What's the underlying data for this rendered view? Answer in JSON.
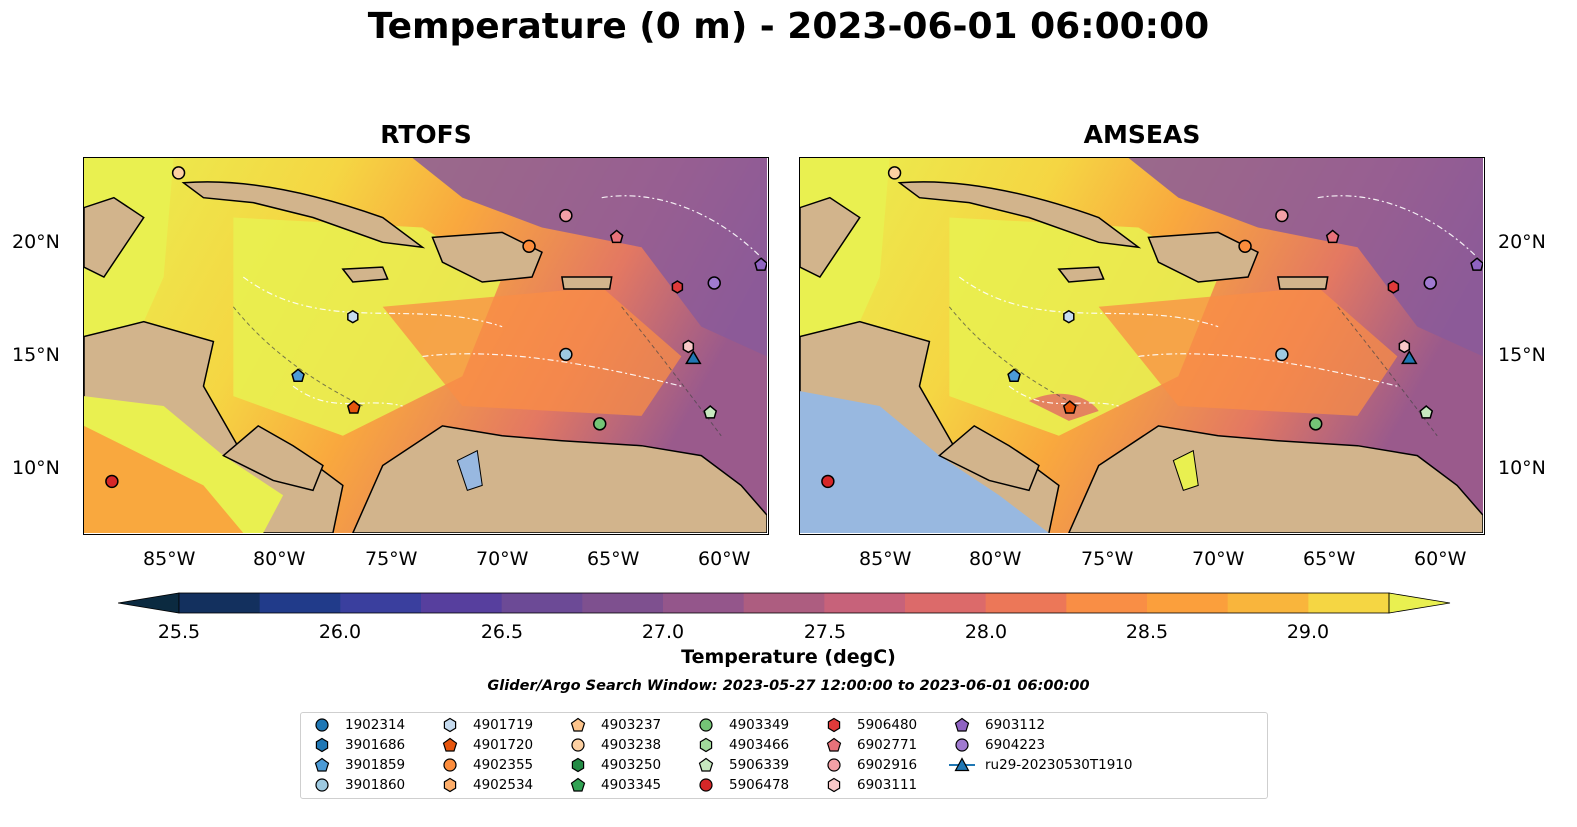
{
  "title": "Temperature (0 m) - 2023-06-01 06:00:00",
  "panels": [
    {
      "title": "RTOFS"
    },
    {
      "title": "AMSEAS"
    }
  ],
  "axes": {
    "x_ticks": [
      "85°W",
      "80°W",
      "75°W",
      "70°W",
      "65°W",
      "60°W"
    ],
    "y_ticks": [
      "20°N",
      "15°N",
      "10°N"
    ]
  },
  "colorbar": {
    "label": "Temperature (degC)",
    "ticks": [
      "25.5",
      "26.0",
      "26.5",
      "27.0",
      "27.5",
      "28.0",
      "28.5",
      "29.0"
    ],
    "colors": [
      "#0b2a40",
      "#13305e",
      "#213b8a",
      "#3a3f9e",
      "#573f9e",
      "#6c4a96",
      "#7e508f",
      "#94568b",
      "#ad5d80",
      "#c7627a",
      "#dc6a6a",
      "#ec7758",
      "#f98e45",
      "#fb9f3c",
      "#f9b53c",
      "#f5d643",
      "#e9f050"
    ]
  },
  "search_window": "Glider/Argo Search Window: 2023-05-27 12:00:00 to 2023-06-01 06:00:00",
  "legend": [
    {
      "label": "1902314",
      "marker": "circle",
      "color": "#1f77b4"
    },
    {
      "label": "3901686",
      "marker": "hexagon",
      "color": "#1f77b4"
    },
    {
      "label": "3901859",
      "marker": "pentagon",
      "color": "#4c9bd6"
    },
    {
      "label": "3901860",
      "marker": "circle",
      "color": "#9ecae1"
    },
    {
      "label": "4901719",
      "marker": "hexagon",
      "color": "#c6dbef"
    },
    {
      "label": "4901720",
      "marker": "pentagon",
      "color": "#e6550d"
    },
    {
      "label": "4902355",
      "marker": "circle",
      "color": "#fd8d3c"
    },
    {
      "label": "4902534",
      "marker": "hexagon",
      "color": "#fdae6b"
    },
    {
      "label": "4903237",
      "marker": "pentagon",
      "color": "#fdc48c"
    },
    {
      "label": "4903238",
      "marker": "circle",
      "color": "#fdd0a2"
    },
    {
      "label": "4903250",
      "marker": "hexagon",
      "color": "#238b45"
    },
    {
      "label": "4903345",
      "marker": "pentagon",
      "color": "#31a354"
    },
    {
      "label": "4903349",
      "marker": "circle",
      "color": "#74c476"
    },
    {
      "label": "4903466",
      "marker": "hexagon",
      "color": "#a1d99b"
    },
    {
      "label": "5906339",
      "marker": "pentagon",
      "color": "#c7e9c0"
    },
    {
      "label": "5906478",
      "marker": "circle",
      "color": "#d62728"
    },
    {
      "label": "5906480",
      "marker": "hexagon",
      "color": "#e03a3a"
    },
    {
      "label": "6902771",
      "marker": "pentagon",
      "color": "#e7727a"
    },
    {
      "label": "6902916",
      "marker": "circle",
      "color": "#f4a0a6"
    },
    {
      "label": "6903111",
      "marker": "hexagon",
      "color": "#f9c8c8"
    },
    {
      "label": "6903112",
      "marker": "pentagon",
      "color": "#8f63c2"
    },
    {
      "label": "6904223",
      "marker": "circle",
      "color": "#a07ad0"
    },
    {
      "label": "ru29-20230530T1910",
      "marker": "triangle-line",
      "color": "#1f77b4"
    }
  ],
  "colors": {
    "land": "#d2b48c",
    "warm": "#e9f050",
    "mid": "#f98e45",
    "cool": "#8a5a9a",
    "pacific_amseas": "#98b8e0"
  }
}
